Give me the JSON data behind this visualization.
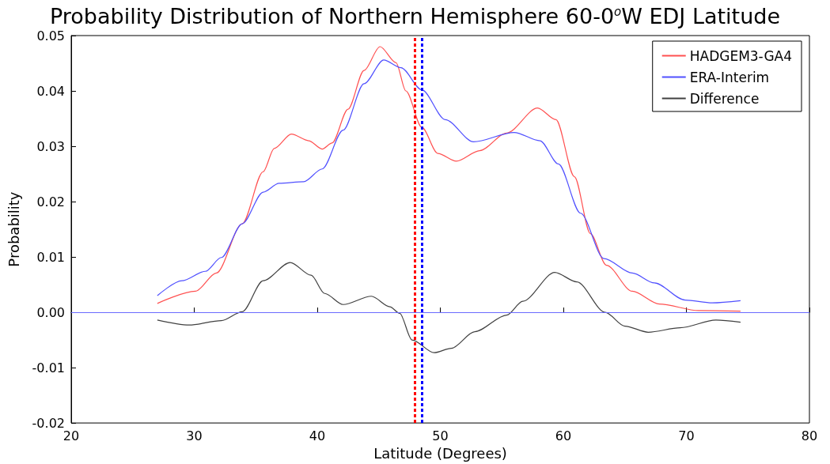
{
  "chart_data": {
    "type": "line",
    "title": "Probability Distribution of Northern Hemisphere 60-0$^{o}$W EDJ Latitude",
    "xlabel": "Latitude (Degrees)",
    "ylabel": "Probability",
    "xlim": [
      20,
      80
    ],
    "xticks": [
      20,
      30,
      40,
      50,
      60,
      70,
      80
    ],
    "ylim": [
      -0.02,
      0.05
    ],
    "yticks": [
      -0.02,
      -0.01,
      {
        "value": 0,
        "label": "0.00"
      },
      0.01,
      0.02,
      0.03,
      0.04,
      0.05
    ],
    "grid": false,
    "legend": "top right",
    "marker": "none",
    "line_style": "solid",
    "series": [
      {
        "name": "HADGEM3-GA4",
        "color": "#ff5050",
        "x": [
          27,
          30.1,
          31.8,
          33.9,
          35.6,
          36.5,
          37.9,
          39.3,
          40.4,
          41.2,
          42.5,
          43.8,
          45.1,
          46.4,
          47.2,
          48.5,
          49.8,
          51.3,
          53.2,
          55.4,
          57.9,
          59.4,
          60.9,
          62.2,
          63.5,
          65.6,
          67.8,
          71,
          74.4
        ],
        "values": [
          0.0016,
          0.0038,
          0.0071,
          0.016,
          0.0254,
          0.0296,
          0.0322,
          0.031,
          0.0295,
          0.0306,
          0.0367,
          0.0437,
          0.048,
          0.0451,
          0.04,
          0.0334,
          0.0287,
          0.0273,
          0.0292,
          0.0324,
          0.0369,
          0.0348,
          0.0245,
          0.0142,
          0.0085,
          0.0038,
          0.0015,
          0.0003,
          0.0002
        ]
      },
      {
        "name": "ERA-Interim",
        "color": "#5050ff",
        "x": [
          27,
          29,
          30.9,
          32.2,
          33.9,
          35.6,
          36.9,
          38.9,
          40.4,
          42.1,
          43.8,
          45.4,
          46.8,
          48.5,
          50.4,
          52.7,
          56,
          58.1,
          59.6,
          61.4,
          63.3,
          65.6,
          67.4,
          69.9,
          72.1,
          74.4
        ],
        "values": [
          0.003,
          0.0057,
          0.0074,
          0.0099,
          0.016,
          0.0217,
          0.0233,
          0.0236,
          0.0259,
          0.0329,
          0.0413,
          0.0456,
          0.0442,
          0.0402,
          0.0348,
          0.0308,
          0.0325,
          0.031,
          0.0268,
          0.0179,
          0.0097,
          0.0071,
          0.0053,
          0.0022,
          0.0017,
          0.0021
        ]
      },
      {
        "name": "Difference",
        "color": "#404040",
        "x": [
          27,
          29.6,
          32.2,
          33.9,
          35.6,
          37.8,
          39.5,
          40.6,
          42.1,
          44.4,
          45.9,
          46.7,
          47.7,
          49.5,
          50.9,
          52.8,
          55.4,
          56.7,
          59.3,
          61.1,
          63.4,
          65,
          66.9,
          69.5,
          72.4,
          74.4
        ],
        "values": [
          -0.0014,
          -0.0023,
          -0.0015,
          0.0001,
          0.0057,
          0.009,
          0.0067,
          0.0034,
          0.0014,
          0.0029,
          0.001,
          -0.0002,
          -0.005,
          -0.0073,
          -0.0065,
          -0.0035,
          -0.0005,
          0.002,
          0.0072,
          0.0055,
          0,
          -0.0025,
          -0.0036,
          -0.0028,
          -0.0014,
          -0.0018
        ]
      }
    ],
    "ref_lines": [
      {
        "axis": "y",
        "value": 0,
        "label": null,
        "color": "#6a6aff",
        "line_style": "solid"
      },
      {
        "axis": "x",
        "value": 47.9,
        "label": null,
        "color": "#ff0000",
        "line_style": "dotted"
      },
      {
        "axis": "x",
        "value": 48.5,
        "label": null,
        "color": "#0000ff",
        "line_style": "dotted"
      }
    ]
  }
}
